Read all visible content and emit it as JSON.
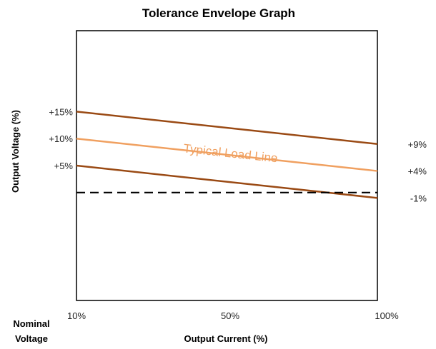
{
  "chart_data": {
    "type": "line",
    "title": "Tolerance Envelope Graph",
    "xlabel": "Output Current (%)",
    "ylabel": "Output Voltage (%)",
    "corner_label": [
      "Nominal",
      "Voltage"
    ],
    "x_ticks": [
      "10%",
      "50%",
      "100%"
    ],
    "xlim": [
      10,
      100
    ],
    "ylim": [
      -20,
      30
    ],
    "grid": false,
    "legend": "none",
    "start_labels": [
      "+15%",
      "+10%",
      "+5%"
    ],
    "end_labels": [
      "+9%",
      "+4%",
      "-1%"
    ],
    "series": [
      {
        "key": "upper",
        "x": [
          10,
          100
        ],
        "y": [
          15,
          9
        ],
        "color": "#9a4a14",
        "dash": false
      },
      {
        "key": "typical",
        "name": "Typical Load Line",
        "x": [
          10,
          100
        ],
        "y": [
          10,
          4
        ],
        "color": "#f0a060",
        "dash": false
      },
      {
        "key": "lower",
        "x": [
          10,
          100
        ],
        "y": [
          5,
          -1
        ],
        "color": "#9a4a14",
        "dash": false
      },
      {
        "key": "nominal",
        "x": [
          10,
          100
        ],
        "y": [
          0,
          0
        ],
        "color": "#000000",
        "dash": true
      }
    ]
  }
}
